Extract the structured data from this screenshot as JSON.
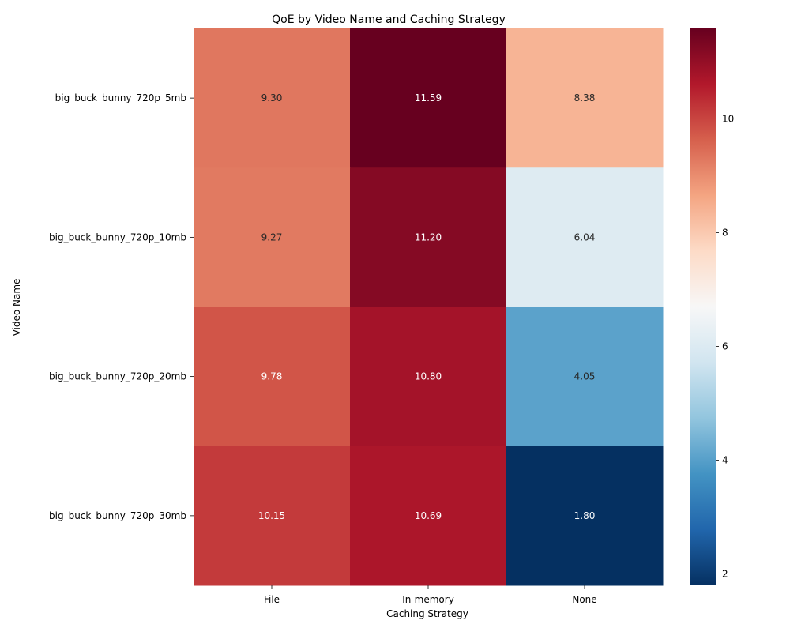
{
  "chart_data": {
    "type": "heatmap",
    "title": "QoE by Video Name and Caching Strategy",
    "xlabel": "Caching Strategy",
    "ylabel": "Video Name",
    "x_categories": [
      "File",
      "In-memory",
      "None"
    ],
    "y_categories": [
      "big_buck_bunny_720p_5mb",
      "big_buck_bunny_720p_10mb",
      "big_buck_bunny_720p_20mb",
      "big_buck_bunny_720p_30mb"
    ],
    "values": [
      [
        9.3,
        11.59,
        8.38
      ],
      [
        9.27,
        11.2,
        6.04
      ],
      [
        9.78,
        10.8,
        4.05
      ],
      [
        10.15,
        10.69,
        1.8
      ]
    ],
    "value_format_decimals": 2,
    "colormap": "RdBu_r",
    "colorbar": {
      "min": 1.8,
      "max": 11.59,
      "ticks": [
        2,
        4,
        6,
        8,
        10
      ]
    }
  }
}
